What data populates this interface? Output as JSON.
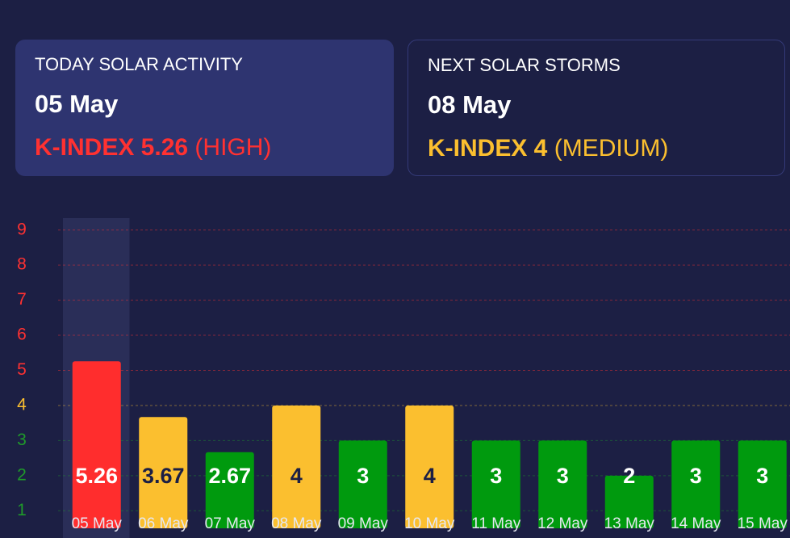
{
  "today": {
    "title": "TODAY SOLAR ACTIVITY",
    "date": "05 May",
    "k_index": "K-INDEX 5.26",
    "level": "(HIGH)",
    "color": "#ff3131"
  },
  "next": {
    "title": "NEXT SOLAR STORMS",
    "date": "08 May",
    "k_index": "K-INDEX 4",
    "level": "(MEDIUM)",
    "color": "#fbbf2f"
  },
  "chart_data": {
    "type": "bar",
    "categories": [
      "05 May",
      "06 May",
      "07 May",
      "08 May",
      "09 May",
      "10 May",
      "11 May",
      "12 May",
      "13 May",
      "14 May",
      "15 May"
    ],
    "values": [
      5.26,
      3.67,
      2.67,
      4,
      3,
      4,
      3,
      3,
      2,
      3,
      3
    ],
    "colors": [
      "#ff2d2d",
      "#fbbf2f",
      "#009a0e",
      "#fbbf2f",
      "#009a0e",
      "#fbbf2f",
      "#009a0e",
      "#009a0e",
      "#009a0e",
      "#009a0e",
      "#009a0e"
    ],
    "label_colors": [
      "#ffffff",
      "#1c1f44",
      "#ffffff",
      "#1c1f44",
      "#ffffff",
      "#1c1f44",
      "#ffffff",
      "#ffffff",
      "#ffffff",
      "#ffffff",
      "#ffffff"
    ],
    "ylim": [
      0.5,
      9.5
    ],
    "yticks": [
      1,
      2,
      3,
      4,
      5,
      6,
      7,
      8,
      9
    ],
    "tick_colors": [
      "#1f9a2a",
      "#1f9a2a",
      "#1f9a2a",
      "#fbbf2f",
      "#ff3131",
      "#ff3131",
      "#ff3131",
      "#ff3131",
      "#ff3131"
    ],
    "grid": true,
    "highlight": 0
  }
}
